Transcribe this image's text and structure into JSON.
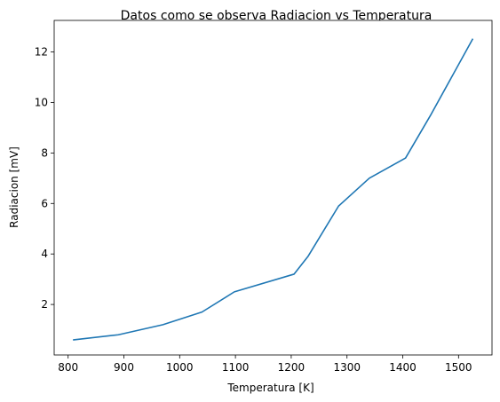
{
  "chart_data": {
    "type": "line",
    "title": "Datos como se observa Radiacion vs Temperatura",
    "xlabel": "Temperatura [K]",
    "ylabel": "Radiacion [mV]",
    "xlim": [
      775,
      1560
    ],
    "ylim": [
      0,
      13.25
    ],
    "x_ticks": [
      800,
      900,
      1000,
      1100,
      1200,
      1300,
      1400,
      1500
    ],
    "y_ticks": [
      2,
      4,
      6,
      8,
      10,
      12
    ],
    "grid": false,
    "series": [
      {
        "color": "#1f77b4",
        "x": [
          810,
          890,
          970,
          1040,
          1098,
          1205,
          1230,
          1285,
          1340,
          1405,
          1450,
          1525
        ],
        "y": [
          0.6,
          0.8,
          1.2,
          1.7,
          2.5,
          3.2,
          3.9,
          5.9,
          7.0,
          7.8,
          9.5,
          12.5
        ]
      }
    ]
  }
}
